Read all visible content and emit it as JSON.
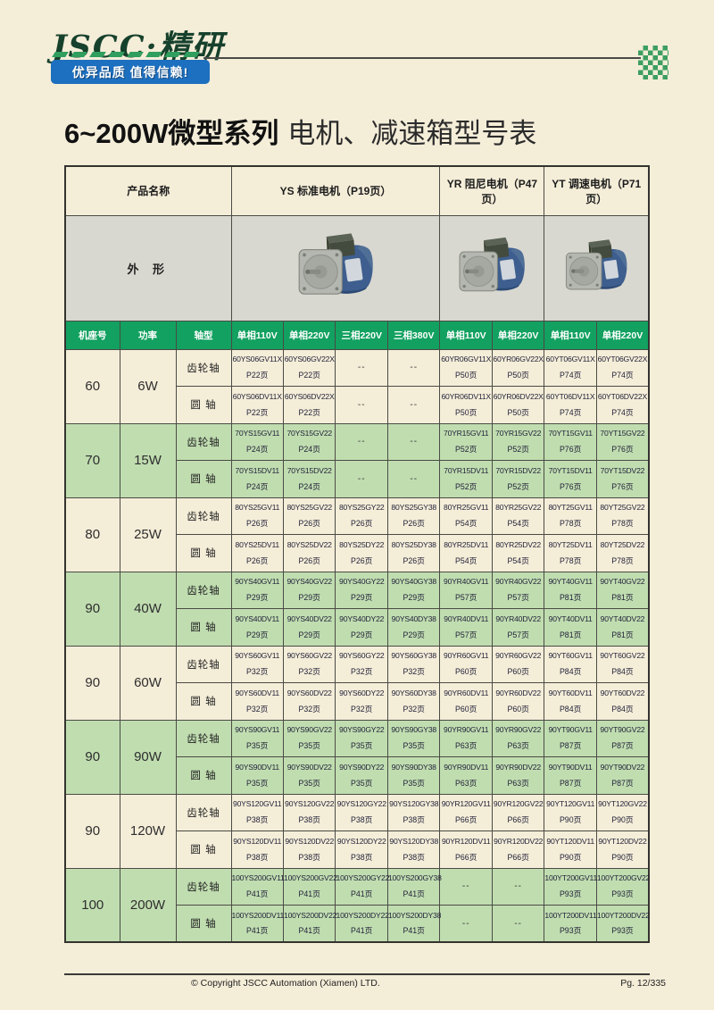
{
  "header": {
    "logo": "JSCC·精研",
    "slogan": "优异品质 值得信赖!"
  },
  "title": {
    "series": "6~200W微型系列",
    "rest": "电机、减速箱型号表"
  },
  "colors": {
    "page_bg": "#f4edd8",
    "green_header": "#12a160",
    "green_row": "#c0ddb0",
    "photo_row_bg": "#d9d8d0",
    "banner_blue": "#1d6fbf",
    "logo_green": "#16412c",
    "dash_green": "#2f9e5e"
  },
  "table": {
    "product_name_label": "产品名称",
    "shape_label": "外 形",
    "groups": [
      {
        "label": "YS 标准电机（P19页）"
      },
      {
        "label": "YR 阻尼电机（P47页）"
      },
      {
        "label": "YT 调速电机（P71页）"
      }
    ],
    "col_headers": [
      "机座号",
      "功率",
      "轴型",
      "单相110V",
      "单相220V",
      "三相220V",
      "三相380V",
      "单相110V",
      "单相220V",
      "单相110V",
      "单相220V"
    ],
    "shaft_labels": [
      "齿轮轴",
      "圆 轴"
    ],
    "rows": [
      {
        "frame": "60",
        "power": "6W",
        "green": false,
        "gear": [
          [
            "60YS06GV11X",
            "P22页"
          ],
          [
            "60YS06GV22X",
            "P22页"
          ],
          [
            "--",
            ""
          ],
          [
            "--",
            ""
          ],
          [
            "60YR06GV11X",
            "P50页"
          ],
          [
            "60YR06GV22X",
            "P50页"
          ],
          [
            "60YT06GV11X",
            "P74页"
          ],
          [
            "60YT06GV22X",
            "P74页"
          ]
        ],
        "round": [
          [
            "60YS06DV11X",
            "P22页"
          ],
          [
            "60YS06DV22X",
            "P22页"
          ],
          [
            "--",
            ""
          ],
          [
            "--",
            ""
          ],
          [
            "60YR06DV11X",
            "P50页"
          ],
          [
            "60YR06DV22X",
            "P50页"
          ],
          [
            "60YT06DV11X",
            "P74页"
          ],
          [
            "60YT06DV22X",
            "P74页"
          ]
        ]
      },
      {
        "frame": "70",
        "power": "15W",
        "green": true,
        "gear": [
          [
            "70YS15GV11",
            "P24页"
          ],
          [
            "70YS15GV22",
            "P24页"
          ],
          [
            "--",
            ""
          ],
          [
            "--",
            ""
          ],
          [
            "70YR15GV11",
            "P52页"
          ],
          [
            "70YR15GV22",
            "P52页"
          ],
          [
            "70YT15GV11",
            "P76页"
          ],
          [
            "70YT15GV22",
            "P76页"
          ]
        ],
        "round": [
          [
            "70YS15DV11",
            "P24页"
          ],
          [
            "70YS15DV22",
            "P24页"
          ],
          [
            "--",
            ""
          ],
          [
            "--",
            ""
          ],
          [
            "70YR15DV11",
            "P52页"
          ],
          [
            "70YR15DV22",
            "P52页"
          ],
          [
            "70YT15DV11",
            "P76页"
          ],
          [
            "70YT15DV22",
            "P76页"
          ]
        ]
      },
      {
        "frame": "80",
        "power": "25W",
        "green": false,
        "gear": [
          [
            "80YS25GV11",
            "P26页"
          ],
          [
            "80YS25GV22",
            "P26页"
          ],
          [
            "80YS25GY22",
            "P26页"
          ],
          [
            "80YS25GY38",
            "P26页"
          ],
          [
            "80YR25GV11",
            "P54页"
          ],
          [
            "80YR25GV22",
            "P54页"
          ],
          [
            "80YT25GV11",
            "P78页"
          ],
          [
            "80YT25GV22",
            "P78页"
          ]
        ],
        "round": [
          [
            "80YS25DV11",
            "P26页"
          ],
          [
            "80YS25DV22",
            "P26页"
          ],
          [
            "80YS25DY22",
            "P26页"
          ],
          [
            "80YS25DY38",
            "P26页"
          ],
          [
            "80YR25DV11",
            "P54页"
          ],
          [
            "80YR25DV22",
            "P54页"
          ],
          [
            "80YT25DV11",
            "P78页"
          ],
          [
            "80YT25DV22",
            "P78页"
          ]
        ]
      },
      {
        "frame": "90",
        "power": "40W",
        "green": true,
        "gear": [
          [
            "90YS40GV11",
            "P29页"
          ],
          [
            "90YS40GV22",
            "P29页"
          ],
          [
            "90YS40GY22",
            "P29页"
          ],
          [
            "90YS40GY38",
            "P29页"
          ],
          [
            "90YR40GV11",
            "P57页"
          ],
          [
            "90YR40GV22",
            "P57页"
          ],
          [
            "90YT40GV11",
            "P81页"
          ],
          [
            "90YT40GV22",
            "P81页"
          ]
        ],
        "round": [
          [
            "90YS40DV11",
            "P29页"
          ],
          [
            "90YS40DV22",
            "P29页"
          ],
          [
            "90YS40DY22",
            "P29页"
          ],
          [
            "90YS40DY38",
            "P29页"
          ],
          [
            "90YR40DV11",
            "P57页"
          ],
          [
            "90YR40DV22",
            "P57页"
          ],
          [
            "90YT40DV11",
            "P81页"
          ],
          [
            "90YT40DV22",
            "P81页"
          ]
        ]
      },
      {
        "frame": "90",
        "power": "60W",
        "green": false,
        "gear": [
          [
            "90YS60GV11",
            "P32页"
          ],
          [
            "90YS60GV22",
            "P32页"
          ],
          [
            "90YS60GY22",
            "P32页"
          ],
          [
            "90YS60GY38",
            "P32页"
          ],
          [
            "90YR60GV11",
            "P60页"
          ],
          [
            "90YR60GV22",
            "P60页"
          ],
          [
            "90YT60GV11",
            "P84页"
          ],
          [
            "90YT60GV22",
            "P84页"
          ]
        ],
        "round": [
          [
            "90YS60DV11",
            "P32页"
          ],
          [
            "90YS60DV22",
            "P32页"
          ],
          [
            "90YS60DY22",
            "P32页"
          ],
          [
            "90YS60DY38",
            "P32页"
          ],
          [
            "90YR60DV11",
            "P60页"
          ],
          [
            "90YR60DV22",
            "P60页"
          ],
          [
            "90YT60DV11",
            "P84页"
          ],
          [
            "90YT60DV22",
            "P84页"
          ]
        ]
      },
      {
        "frame": "90",
        "power": "90W",
        "green": true,
        "gear": [
          [
            "90YS90GV11",
            "P35页"
          ],
          [
            "90YS90GV22",
            "P35页"
          ],
          [
            "90YS90GY22",
            "P35页"
          ],
          [
            "90YS90GY38",
            "P35页"
          ],
          [
            "90YR90GV11",
            "P63页"
          ],
          [
            "90YR90GV22",
            "P63页"
          ],
          [
            "90YT90GV11",
            "P87页"
          ],
          [
            "90YT90GV22",
            "P87页"
          ]
        ],
        "round": [
          [
            "90YS90DV11",
            "P35页"
          ],
          [
            "90YS90DV22",
            "P35页"
          ],
          [
            "90YS90DY22",
            "P35页"
          ],
          [
            "90YS90DY38",
            "P35页"
          ],
          [
            "90YR90DV11",
            "P63页"
          ],
          [
            "90YR90DV22",
            "P63页"
          ],
          [
            "90YT90DV11",
            "P87页"
          ],
          [
            "90YT90DV22",
            "P87页"
          ]
        ]
      },
      {
        "frame": "90",
        "power": "120W",
        "green": false,
        "gear": [
          [
            "90YS120GV11",
            "P38页"
          ],
          [
            "90YS120GV22",
            "P38页"
          ],
          [
            "90YS120GY22",
            "P38页"
          ],
          [
            "90YS120GY38",
            "P38页"
          ],
          [
            "90YR120GV11",
            "P66页"
          ],
          [
            "90YR120GV22",
            "P66页"
          ],
          [
            "90YT120GV11",
            "P90页"
          ],
          [
            "90YT120GV22",
            "P90页"
          ]
        ],
        "round": [
          [
            "90YS120DV11",
            "P38页"
          ],
          [
            "90YS120DV22",
            "P38页"
          ],
          [
            "90YS120DY22",
            "P38页"
          ],
          [
            "90YS120DY38",
            "P38页"
          ],
          [
            "90YR120DV11",
            "P66页"
          ],
          [
            "90YR120DV22",
            "P66页"
          ],
          [
            "90YT120DV11",
            "P90页"
          ],
          [
            "90YT120DV22",
            "P90页"
          ]
        ]
      },
      {
        "frame": "100",
        "power": "200W",
        "green": true,
        "gear": [
          [
            "100YS200GV11",
            "P41页"
          ],
          [
            "100YS200GV22",
            "P41页"
          ],
          [
            "100YS200GY22",
            "P41页"
          ],
          [
            "100YS200GY38",
            "P41页"
          ],
          [
            "--",
            ""
          ],
          [
            "--",
            ""
          ],
          [
            "100YT200GV11",
            "P93页"
          ],
          [
            "100YT200GV22",
            "P93页"
          ]
        ],
        "round": [
          [
            "100YS200DV11",
            "P41页"
          ],
          [
            "100YS200DV22",
            "P41页"
          ],
          [
            "100YS200DY22",
            "P41页"
          ],
          [
            "100YS200DY38",
            "P41页"
          ],
          [
            "--",
            ""
          ],
          [
            "--",
            ""
          ],
          [
            "100YT200DV11",
            "P93页"
          ],
          [
            "100YT200DV22",
            "P93页"
          ]
        ]
      }
    ]
  },
  "footer": {
    "copyright": "© Copyright JSCC Automation (Xiamen) LTD.",
    "page": "Pg. 12/335"
  }
}
